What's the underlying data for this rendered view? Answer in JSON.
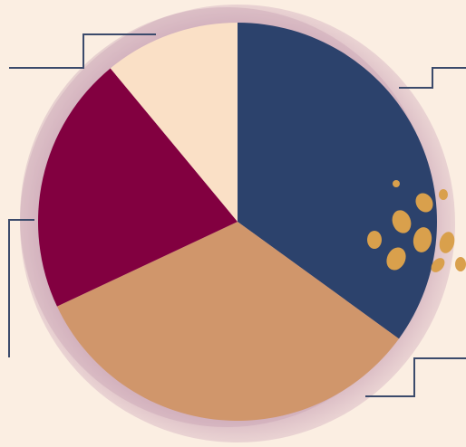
{
  "chart_data": {
    "type": "pie",
    "values": [
      35,
      33,
      21,
      11
    ],
    "colors": [
      "#2c426c",
      "#d0966b",
      "#820040",
      "#fae0c6"
    ]
  }
}
